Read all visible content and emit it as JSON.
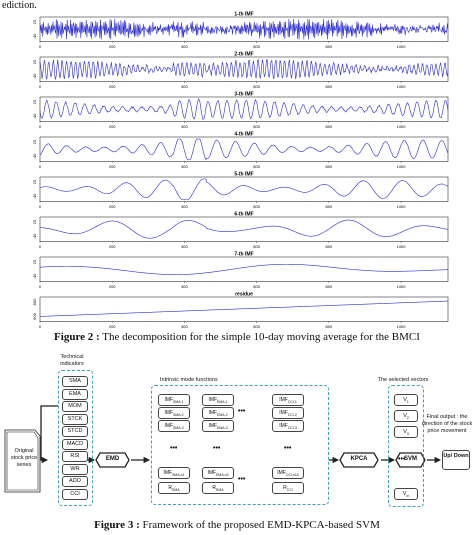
{
  "fragment_text": "ediction.",
  "decomposition": {
    "panels": [
      {
        "title": "1-th IMF",
        "yticks": [
          "20",
          "-40"
        ]
      },
      {
        "title": "2-th IMF",
        "yticks": [
          "20",
          "-40"
        ]
      },
      {
        "title": "3-th IMF",
        "yticks": [
          "20",
          "-40"
        ]
      },
      {
        "title": "4-th IMF",
        "yticks": [
          "20",
          "-40"
        ]
      },
      {
        "title": "5-th IMF",
        "yticks": [
          "20",
          "-40"
        ]
      },
      {
        "title": "6-th IMF",
        "yticks": [
          "20",
          "-40"
        ]
      },
      {
        "title": "7-th IMF",
        "yticks": [
          "20",
          "-40"
        ]
      },
      {
        "title": "residue",
        "yticks": [
          "800",
          "600"
        ]
      }
    ],
    "xticks": [
      "0",
      "200",
      "400",
      "600",
      "800",
      "1000"
    ],
    "line_color": "#2a2ad0"
  },
  "chart_data": {
    "type": "line",
    "title": "",
    "x_range": [
      0,
      1130
    ],
    "xticks": [
      0,
      200,
      400,
      600,
      800,
      1000
    ],
    "series": [
      {
        "name": "1-th IMF",
        "y_range": [
          -40,
          20
        ]
      },
      {
        "name": "2-th IMF",
        "y_range": [
          -40,
          20
        ]
      },
      {
        "name": "3-th IMF",
        "y_range": [
          -40,
          20
        ]
      },
      {
        "name": "4-th IMF",
        "y_range": [
          -40,
          20
        ]
      },
      {
        "name": "5-th IMF",
        "y_range": [
          -40,
          20
        ]
      },
      {
        "name": "6-th IMF",
        "y_range": [
          -40,
          20
        ]
      },
      {
        "name": "7-th IMF",
        "y_range": [
          -40,
          20
        ]
      },
      {
        "name": "residue",
        "y_range": [
          600,
          800
        ]
      }
    ]
  },
  "figure2_caption": {
    "label": "Figure 2 :",
    "text": " The decomposition for the simple 10-day moving average for the BMCI"
  },
  "framework": {
    "technical_indicators_title": "Technical indicators",
    "indicators": [
      "SMA",
      "EMA",
      "MOM",
      "STCK",
      "STCD",
      "MACD",
      "RSI",
      "WR",
      "ADO",
      "CCI"
    ],
    "input_label": "Original stock price series",
    "emd": "EMD",
    "imf_title": "Intrinsic mode functions",
    "imf_rows": [
      [
        "IMF",
        "SMA,1",
        "IMF",
        "EMA,1",
        "IMF",
        "CCI,1"
      ],
      [
        "IMF",
        "SMA,2",
        "IMF",
        "EMA,2",
        "IMF",
        "CCI,2"
      ],
      [
        "IMF",
        "SMA,3",
        "IMF",
        "EMA,3",
        "IMF",
        "CCI,3"
      ]
    ],
    "imf_bottom_rows": [
      [
        "IMF",
        "SMA,n1",
        "IMF",
        "EMA,n2",
        "IMF",
        "CCI,n10"
      ],
      [
        "R",
        "SMA",
        "R",
        "EMA",
        "R",
        "CCI"
      ]
    ],
    "ellipsis": "•••",
    "kpca": "KPCA",
    "selected_title": "The selected vectors",
    "vectors": [
      "V1",
      "V2",
      "V3",
      "Vm"
    ],
    "svm": "SVM",
    "final_output_label": "Final output : the direction of the stock price movement",
    "output_box": "Up/ Down"
  },
  "figure3_caption": {
    "label": "Figure 3 :",
    "text": " Framework of the proposed EMD-KPCA-based SVM"
  }
}
